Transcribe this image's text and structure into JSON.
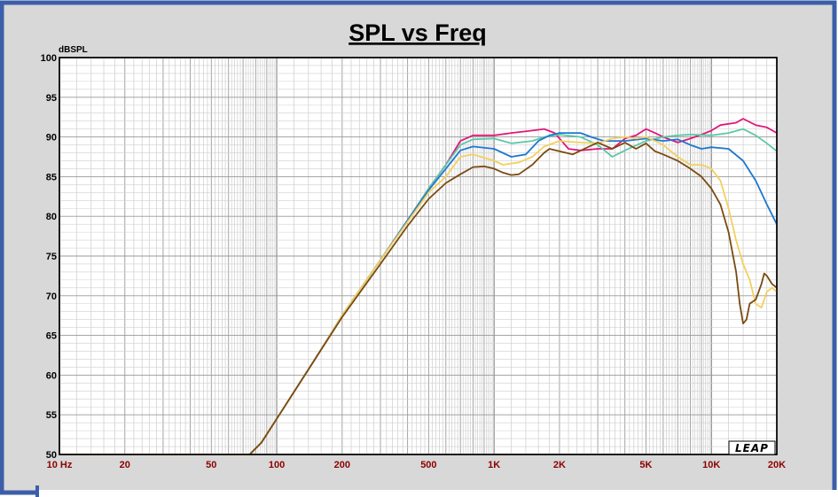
{
  "chart_data": {
    "type": "line",
    "title": "SPL vs Freq",
    "ylabel": "dBSPL",
    "xlabel": "",
    "x_scale": "log",
    "xlim": [
      10,
      20000
    ],
    "ylim": [
      50,
      100
    ],
    "y_ticks": [
      50,
      55,
      60,
      65,
      70,
      75,
      80,
      85,
      90,
      95,
      100
    ],
    "x_ticks": [
      {
        "value": 10,
        "label": "10 Hz"
      },
      {
        "value": 20,
        "label": "20"
      },
      {
        "value": 50,
        "label": "50"
      },
      {
        "value": 100,
        "label": "100"
      },
      {
        "value": 200,
        "label": "200"
      },
      {
        "value": 500,
        "label": "500"
      },
      {
        "value": 1000,
        "label": "1K"
      },
      {
        "value": 2000,
        "label": "2K"
      },
      {
        "value": 5000,
        "label": "5K"
      },
      {
        "value": 10000,
        "label": "10K"
      },
      {
        "value": 20000,
        "label": "20K"
      }
    ],
    "grid": true,
    "logo": "LEAP",
    "series": [
      {
        "color": "#e0187a",
        "points": [
          [
            10,
            50
          ],
          [
            75,
            50
          ],
          [
            85,
            51.5
          ],
          [
            100,
            54.5
          ],
          [
            150,
            62
          ],
          [
            200,
            67.5
          ],
          [
            300,
            74.5
          ],
          [
            400,
            79.5
          ],
          [
            500,
            83.5
          ],
          [
            600,
            86.5
          ],
          [
            700,
            89.5
          ],
          [
            800,
            90.2
          ],
          [
            1000,
            90.2
          ],
          [
            1200,
            90.5
          ],
          [
            1500,
            90.8
          ],
          [
            1700,
            91
          ],
          [
            1900,
            90.5
          ],
          [
            2200,
            88.5
          ],
          [
            2500,
            88.3
          ],
          [
            3000,
            88.5
          ],
          [
            3500,
            88.5
          ],
          [
            4000,
            89.8
          ],
          [
            4500,
            90.2
          ],
          [
            5000,
            91
          ],
          [
            5500,
            90.5
          ],
          [
            6000,
            90
          ],
          [
            7000,
            89.3
          ],
          [
            8000,
            89.8
          ],
          [
            9000,
            90.3
          ],
          [
            10000,
            90.8
          ],
          [
            11000,
            91.5
          ],
          [
            13000,
            91.8
          ],
          [
            14000,
            92.3
          ],
          [
            16000,
            91.5
          ],
          [
            18000,
            91.2
          ],
          [
            20000,
            90.5
          ]
        ]
      },
      {
        "color": "#5dc8a8",
        "points": [
          [
            10,
            50
          ],
          [
            75,
            50
          ],
          [
            85,
            51.5
          ],
          [
            100,
            54.5
          ],
          [
            150,
            62
          ],
          [
            200,
            67.5
          ],
          [
            300,
            74.5
          ],
          [
            400,
            79.5
          ],
          [
            500,
            83.5
          ],
          [
            600,
            86.5
          ],
          [
            700,
            89
          ],
          [
            800,
            89.7
          ],
          [
            1000,
            89.8
          ],
          [
            1200,
            89.2
          ],
          [
            1500,
            89.5
          ],
          [
            1700,
            90
          ],
          [
            2000,
            90.3
          ],
          [
            2500,
            90
          ],
          [
            3000,
            89
          ],
          [
            3500,
            87.5
          ],
          [
            4000,
            88.3
          ],
          [
            5000,
            89.5
          ],
          [
            6000,
            90
          ],
          [
            7000,
            90.2
          ],
          [
            8000,
            90.3
          ],
          [
            10000,
            90.2
          ],
          [
            12000,
            90.5
          ],
          [
            14000,
            91
          ],
          [
            16000,
            90.2
          ],
          [
            18000,
            89.2
          ],
          [
            20000,
            88.2
          ]
        ]
      },
      {
        "color": "#1e78d0",
        "points": [
          [
            10,
            50
          ],
          [
            75,
            50
          ],
          [
            85,
            51.5
          ],
          [
            100,
            54.5
          ],
          [
            150,
            62
          ],
          [
            200,
            67.5
          ],
          [
            300,
            74.5
          ],
          [
            400,
            79.5
          ],
          [
            500,
            83.3
          ],
          [
            600,
            86
          ],
          [
            700,
            88.3
          ],
          [
            800,
            88.8
          ],
          [
            1000,
            88.5
          ],
          [
            1200,
            87.5
          ],
          [
            1400,
            87.8
          ],
          [
            1600,
            89.5
          ],
          [
            1800,
            90.2
          ],
          [
            2000,
            90.5
          ],
          [
            2500,
            90.5
          ],
          [
            2800,
            90
          ],
          [
            3200,
            89.5
          ],
          [
            4000,
            89.5
          ],
          [
            5000,
            89.8
          ],
          [
            6000,
            89.5
          ],
          [
            7000,
            89.7
          ],
          [
            8000,
            89
          ],
          [
            9000,
            88.5
          ],
          [
            10000,
            88.7
          ],
          [
            12000,
            88.5
          ],
          [
            14000,
            87
          ],
          [
            16000,
            84.5
          ],
          [
            18000,
            81.5
          ],
          [
            20000,
            79
          ]
        ]
      },
      {
        "color": "#f2d060",
        "points": [
          [
            10,
            50
          ],
          [
            75,
            50
          ],
          [
            85,
            51.5
          ],
          [
            100,
            54.5
          ],
          [
            150,
            62
          ],
          [
            200,
            67.5
          ],
          [
            300,
            74.5
          ],
          [
            400,
            79.3
          ],
          [
            500,
            83
          ],
          [
            600,
            85
          ],
          [
            700,
            87.5
          ],
          [
            800,
            87.8
          ],
          [
            1000,
            87
          ],
          [
            1100,
            86.5
          ],
          [
            1300,
            86.8
          ],
          [
            1500,
            87.5
          ],
          [
            1700,
            88.8
          ],
          [
            2000,
            89.5
          ],
          [
            2500,
            89.3
          ],
          [
            3000,
            89.2
          ],
          [
            3500,
            89.8
          ],
          [
            4000,
            90
          ],
          [
            4500,
            89.8
          ],
          [
            5000,
            90
          ],
          [
            5500,
            89.5
          ],
          [
            6000,
            89
          ],
          [
            6500,
            88.2
          ],
          [
            7000,
            87.5
          ],
          [
            8000,
            86.5
          ],
          [
            9000,
            86.5
          ],
          [
            10000,
            86
          ],
          [
            11000,
            84.5
          ],
          [
            12000,
            81
          ],
          [
            13000,
            77
          ],
          [
            14000,
            74
          ],
          [
            15000,
            72
          ],
          [
            16000,
            69
          ],
          [
            17000,
            68.5
          ],
          [
            18000,
            70.5
          ],
          [
            19000,
            71
          ],
          [
            20000,
            70.5
          ]
        ]
      },
      {
        "color": "#7a4a10",
        "points": [
          [
            10,
            50
          ],
          [
            75,
            50
          ],
          [
            85,
            51.5
          ],
          [
            100,
            54.5
          ],
          [
            150,
            62
          ],
          [
            200,
            67.3
          ],
          [
            300,
            74
          ],
          [
            400,
            78.8
          ],
          [
            500,
            82.2
          ],
          [
            600,
            84.2
          ],
          [
            700,
            85.3
          ],
          [
            800,
            86.2
          ],
          [
            900,
            86.3
          ],
          [
            1000,
            86
          ],
          [
            1100,
            85.5
          ],
          [
            1200,
            85.2
          ],
          [
            1300,
            85.3
          ],
          [
            1500,
            86.5
          ],
          [
            1700,
            88
          ],
          [
            1800,
            88.5
          ],
          [
            2000,
            88.2
          ],
          [
            2300,
            87.8
          ],
          [
            2600,
            88.5
          ],
          [
            3000,
            89.3
          ],
          [
            3500,
            88.5
          ],
          [
            4000,
            89.3
          ],
          [
            4500,
            88.5
          ],
          [
            5000,
            89.2
          ],
          [
            5500,
            88.2
          ],
          [
            6000,
            87.8
          ],
          [
            7000,
            87
          ],
          [
            8000,
            86
          ],
          [
            9000,
            85
          ],
          [
            10000,
            83.5
          ],
          [
            11000,
            81.5
          ],
          [
            12000,
            78
          ],
          [
            13000,
            73
          ],
          [
            13500,
            69
          ],
          [
            14000,
            66.5
          ],
          [
            14500,
            67
          ],
          [
            15000,
            69
          ],
          [
            16000,
            69.5
          ],
          [
            16500,
            70.5
          ],
          [
            17000,
            71.5
          ],
          [
            17500,
            72.8
          ],
          [
            18000,
            72.5
          ],
          [
            19000,
            71.5
          ],
          [
            20000,
            71
          ]
        ]
      }
    ]
  }
}
